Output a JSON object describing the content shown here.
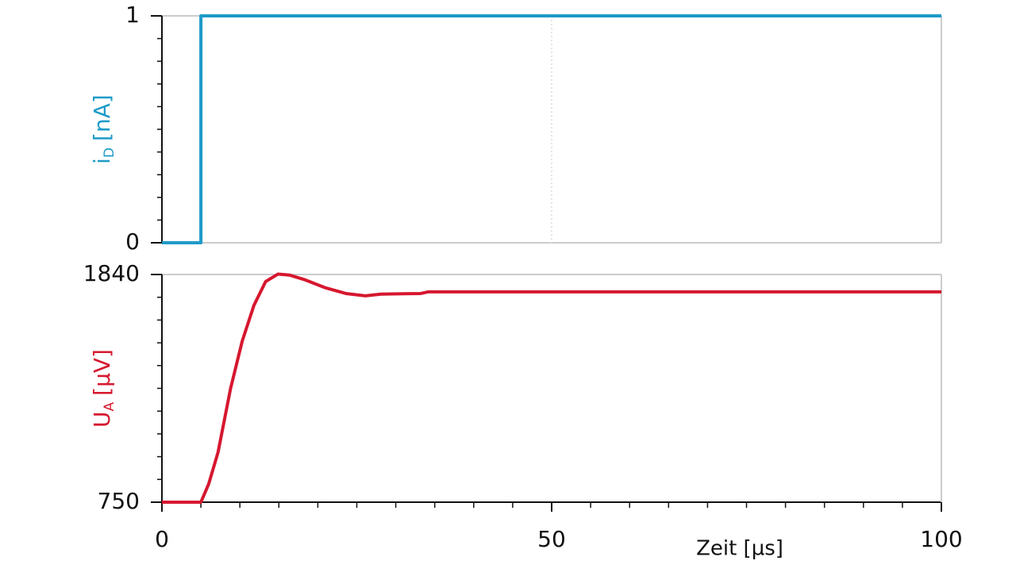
{
  "chart_data": [
    {
      "type": "line",
      "ylabel": "i",
      "ylabel_sub": "D",
      "ylabel_unit": "[nA]",
      "label_color": "#1e9bc8",
      "xlim": [
        0,
        100
      ],
      "xticks": [
        0,
        50,
        100
      ],
      "show_xtick_labels": false,
      "ylim": [
        0,
        1
      ],
      "yticks": [
        0,
        1
      ],
      "y_minor_divisions": 10,
      "grid": true,
      "series": [
        {
          "color": "#1e9bc8",
          "x": [
            0,
            5,
            5,
            100
          ],
          "values": [
            0,
            0,
            1,
            1
          ]
        }
      ]
    },
    {
      "type": "line",
      "ylabel": "U",
      "ylabel_sub": "A",
      "ylabel_unit": "[µV]",
      "label_color": "#d6172f",
      "xlabel": "Zeit [µs]",
      "xlim": [
        0,
        100
      ],
      "xticks": [
        0,
        50,
        100
      ],
      "show_xtick_labels": true,
      "x_minor_step": 5,
      "ylim": [
        750,
        1840
      ],
      "yticks": [
        750,
        1840
      ],
      "y_minor_divisions": 10,
      "grid": true,
      "series": [
        {
          "color": "#d6172f",
          "x": [
            0,
            5,
            6,
            7.2,
            8.8,
            10.3,
            11.8,
            13.3,
            14.9,
            16.4,
            18.4,
            21,
            23.6,
            26.1,
            28.1,
            33.2,
            34.2,
            100
          ],
          "values": [
            750,
            750,
            837,
            989,
            1293,
            1521,
            1692,
            1806,
            1842,
            1837,
            1814,
            1776,
            1749,
            1738,
            1746,
            1749,
            1757,
            1757
          ]
        }
      ]
    }
  ]
}
